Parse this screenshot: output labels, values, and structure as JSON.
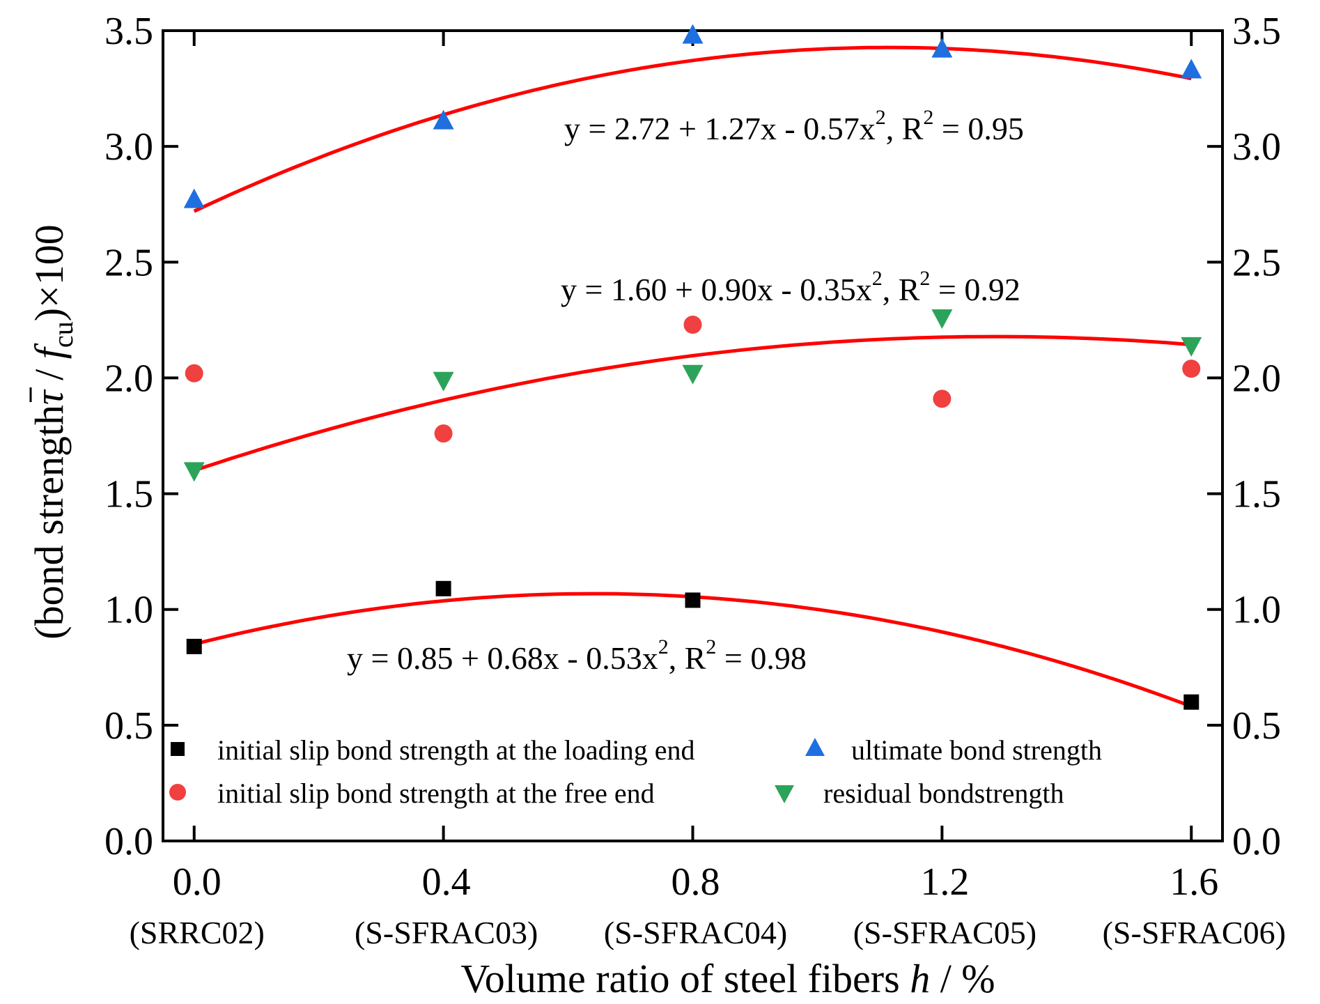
{
  "chart_data": {
    "type": "scatter",
    "xlabel": "Volume ratio of steel fibers",
    "xlabel_var": "h",
    "xlabel_unit": " / %",
    "ylabel_pre": "(bond strength",
    "ylabel_tau": "τ",
    "ylabel_mid": " / ",
    "ylabel_f": "f",
    "ylabel_sub": "cu",
    "ylabel_post": ")×100",
    "xlim": [
      -0.05,
      1.65
    ],
    "ylim": [
      0,
      3.5
    ],
    "x": [
      0.0,
      0.4,
      0.8,
      1.2,
      1.6
    ],
    "x_tick_labels": [
      "0.0",
      "0.4",
      "0.8",
      "1.2",
      "1.6"
    ],
    "x_sub_labels": [
      "(SRRC02)",
      "(S-SFRAC03)",
      "(S-SFRAC04)",
      "(S-SFRAC05)",
      "(S-SFRAC06)"
    ],
    "y_ticks": [
      0.0,
      0.5,
      1.0,
      1.5,
      2.0,
      2.5,
      3.0,
      3.5
    ],
    "y_tick_labels": [
      "0.0",
      "0.5",
      "1.0",
      "1.5",
      "2.0",
      "2.5",
      "3.0",
      "3.5"
    ],
    "series": [
      {
        "name": "initial slip bond strength at the loading end",
        "marker": "square",
        "color": "#000000",
        "values": [
          0.84,
          1.09,
          1.04,
          null,
          0.6
        ]
      },
      {
        "name": "ultimate bond strength",
        "marker": "triangle-up",
        "color": "#1f6fe0",
        "values": [
          2.77,
          3.11,
          3.48,
          3.42,
          3.33
        ]
      },
      {
        "name": "initial slip bond strength at the free end",
        "marker": "circle",
        "color": "#f04040",
        "values": [
          2.02,
          1.76,
          2.23,
          1.91,
          2.04
        ]
      },
      {
        "name": "residual bondstrength",
        "marker": "triangle-down",
        "color": "#2ca35a",
        "values": [
          1.6,
          1.99,
          2.02,
          2.26,
          2.14
        ]
      }
    ],
    "fits": [
      {
        "label": "y = 2.72 + 1.27x - 0.57x², R² = 0.95",
        "a": 2.72,
        "b": 1.27,
        "c": -0.57,
        "color": "#ff0000",
        "parts": [
          "y = 2.72 + 1.27x - 0.57x",
          "2",
          ", R",
          "2",
          " = 0.95"
        ]
      },
      {
        "label": "y = 1.60 + 0.90x - 0.35x², R² = 0.92",
        "a": 1.6,
        "b": 0.9,
        "c": -0.35,
        "color": "#ff0000",
        "parts": [
          "y = 1.60 + 0.90x - 0.35x",
          "2",
          ", R",
          "2",
          " = 0.92"
        ]
      },
      {
        "label": "y = 0.85 + 0.68x - 0.53x², R² = 0.98",
        "a": 0.85,
        "b": 0.68,
        "c": -0.53,
        "color": "#ff0000",
        "parts": [
          "y = 0.85 + 0.68x - 0.53x",
          "2",
          ", R",
          "2",
          " = 0.98"
        ]
      }
    ],
    "legend_position": "bottom-left"
  }
}
